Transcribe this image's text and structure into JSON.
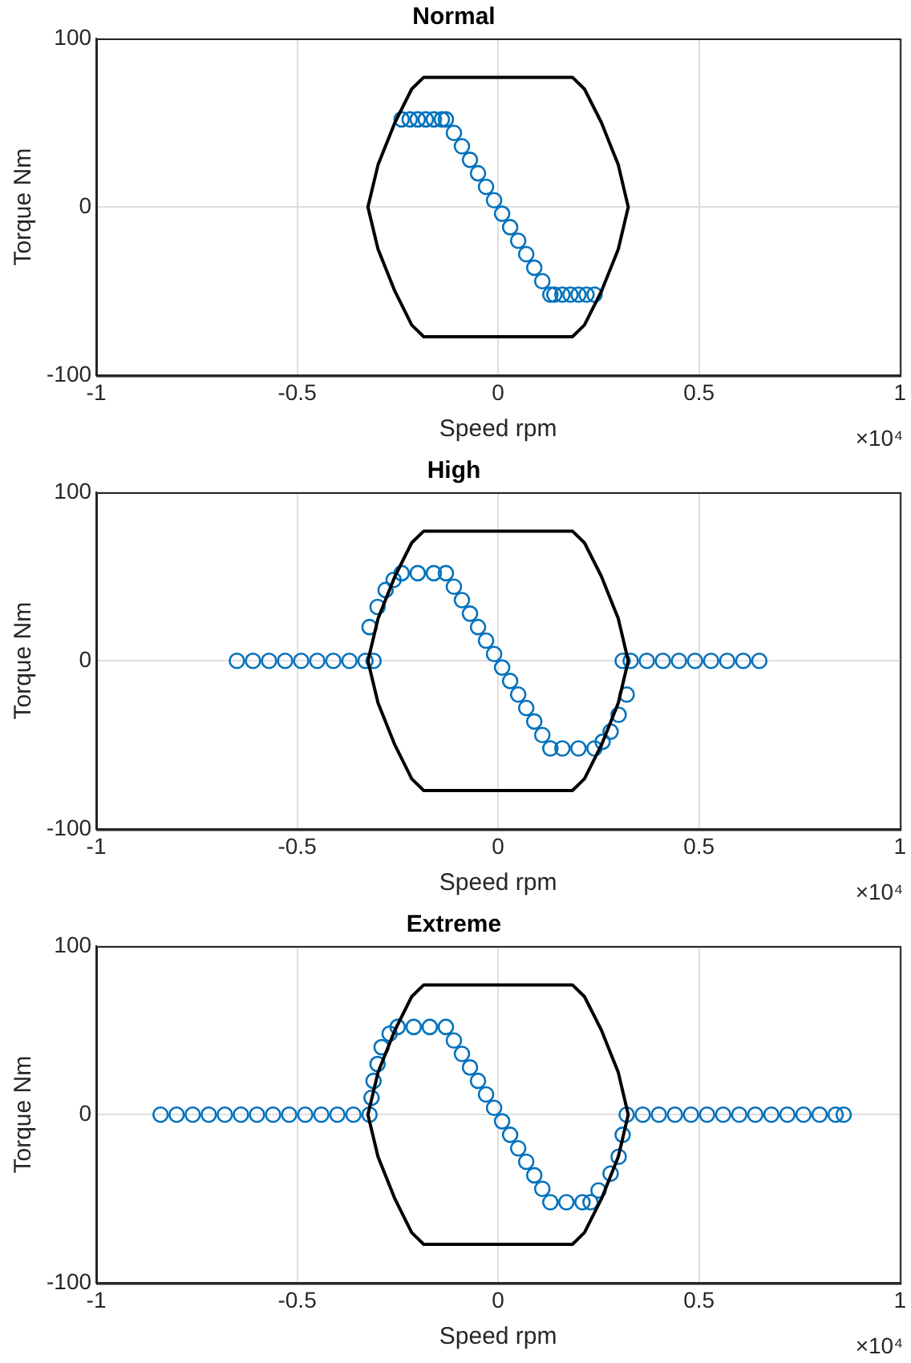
{
  "chart_data": [
    {
      "type": "scatter",
      "title": "Normal",
      "xlabel": "Speed rpm",
      "ylabel": "Torque Nm",
      "annotations": [
        "×10⁴"
      ],
      "xlim": [
        -1,
        1
      ],
      "xticks": [
        -1,
        -0.5,
        0,
        0.5,
        1
      ],
      "ylim": [
        -100,
        100
      ],
      "yticks": [
        -100,
        0,
        100
      ],
      "grid": true,
      "marker": "circle",
      "series": [
        {
          "color": "#0072bd",
          "x": [
            -0.24,
            -0.22,
            -0.2,
            -0.18,
            -0.16,
            -0.14,
            -0.13,
            -0.11,
            -0.09,
            -0.07,
            -0.05,
            -0.03,
            -0.01,
            0.01,
            0.03,
            0.05,
            0.07,
            0.09,
            0.11,
            0.13,
            0.14,
            0.16,
            0.18,
            0.2,
            0.22,
            0.24
          ],
          "values": [
            52,
            52,
            52,
            52,
            52,
            52,
            52,
            44,
            36,
            28,
            20,
            12,
            4,
            -4,
            -12,
            -20,
            -28,
            -36,
            -44,
            -52,
            -52,
            -52,
            -52,
            -52,
            -52,
            -52
          ]
        }
      ]
    },
    {
      "type": "scatter",
      "title": "High",
      "xlabel": "Speed rpm",
      "ylabel": "Torque Nm",
      "annotations": [
        "×10⁴"
      ],
      "xlim": [
        -1,
        1
      ],
      "xticks": [
        -1,
        -0.5,
        0,
        0.5,
        1
      ],
      "ylim": [
        -100,
        100
      ],
      "yticks": [
        -100,
        0,
        100
      ],
      "grid": true,
      "marker": "circle",
      "series": [
        {
          "color": "#0072bd",
          "x": [
            -0.65,
            -0.61,
            -0.57,
            -0.53,
            -0.49,
            -0.45,
            -0.41,
            -0.37,
            -0.33,
            -0.31,
            -0.32,
            -0.3,
            -0.28,
            -0.26,
            -0.24,
            -0.2,
            -0.16,
            -0.13,
            -0.11,
            -0.09,
            -0.07,
            -0.05,
            -0.03,
            -0.01,
            0.01,
            0.03,
            0.05,
            0.07,
            0.09,
            0.11,
            0.13,
            0.16,
            0.2,
            0.24,
            0.26,
            0.28,
            0.3,
            0.32,
            0.31,
            0.33,
            0.37,
            0.41,
            0.45,
            0.49,
            0.53,
            0.57,
            0.61,
            0.65
          ],
          "values": [
            0,
            0,
            0,
            0,
            0,
            0,
            0,
            0,
            0,
            0,
            20,
            32,
            42,
            48,
            52,
            52,
            52,
            52,
            44,
            36,
            28,
            20,
            12,
            4,
            -4,
            -12,
            -20,
            -28,
            -36,
            -44,
            -52,
            -52,
            -52,
            -52,
            -48,
            -42,
            -32,
            -20,
            0,
            0,
            0,
            0,
            0,
            0,
            0,
            0,
            0,
            0
          ]
        }
      ]
    },
    {
      "type": "scatter",
      "title": "Extreme",
      "xlabel": "Speed rpm",
      "ylabel": "Torque Nm",
      "annotations": [
        "×10⁴"
      ],
      "xlim": [
        -1,
        1
      ],
      "xticks": [
        -1,
        -0.5,
        0,
        0.5,
        1
      ],
      "ylim": [
        -100,
        100
      ],
      "yticks": [
        -100,
        0,
        100
      ],
      "grid": true,
      "marker": "circle",
      "series": [
        {
          "color": "#0072bd",
          "x": [
            -0.84,
            -0.8,
            -0.76,
            -0.72,
            -0.68,
            -0.64,
            -0.6,
            -0.56,
            -0.52,
            -0.48,
            -0.44,
            -0.4,
            -0.36,
            -0.32,
            -0.315,
            -0.31,
            -0.3,
            -0.29,
            -0.27,
            -0.25,
            -0.21,
            -0.17,
            -0.13,
            -0.11,
            -0.09,
            -0.07,
            -0.05,
            -0.03,
            -0.01,
            0.01,
            0.03,
            0.05,
            0.07,
            0.09,
            0.11,
            0.13,
            0.17,
            0.21,
            0.23,
            0.25,
            0.28,
            0.3,
            0.31,
            0.32,
            0.36,
            0.4,
            0.44,
            0.48,
            0.52,
            0.56,
            0.6,
            0.64,
            0.68,
            0.72,
            0.76,
            0.8,
            0.84,
            0.86
          ],
          "values": [
            0,
            0,
            0,
            0,
            0,
            0,
            0,
            0,
            0,
            0,
            0,
            0,
            0,
            0,
            10,
            20,
            30,
            40,
            48,
            52,
            52,
            52,
            52,
            44,
            36,
            28,
            20,
            12,
            4,
            -4,
            -12,
            -20,
            -28,
            -36,
            -44,
            -52,
            -52,
            -52,
            -52,
            -45,
            -35,
            -25,
            -12,
            0,
            0,
            0,
            0,
            0,
            0,
            0,
            0,
            0,
            0,
            0,
            0,
            0,
            0,
            0
          ]
        }
      ]
    }
  ]
}
